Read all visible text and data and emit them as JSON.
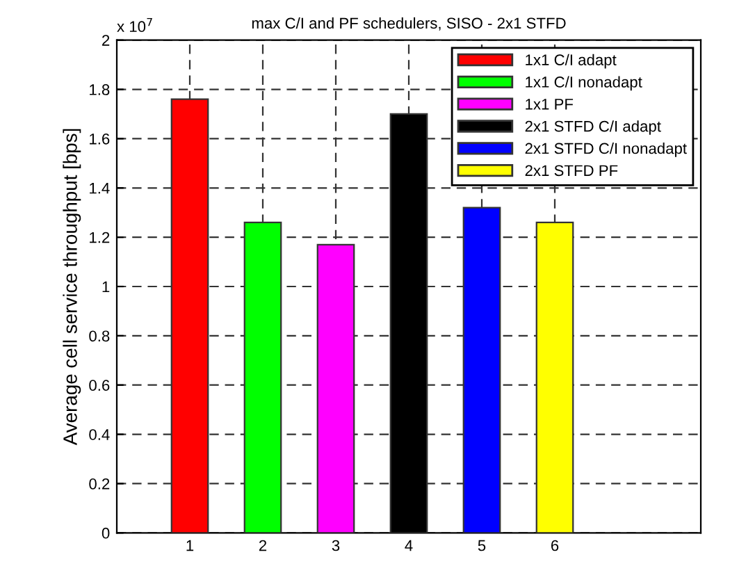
{
  "chart_data": {
    "type": "bar",
    "title": "max C/I and PF schedulers, SISO - 2x1 STFD",
    "ylabel": "Average cell service throughput [bps]",
    "annotations": [
      "x 10$^{7}$"
    ],
    "series": [
      {
        "name": "1x1 C/I adapt",
        "color": "#ff0000",
        "x": [
          1
        ],
        "values": [
          1.76
        ]
      },
      {
        "name": "1x1 C/I nonadapt",
        "color": "#00ff00",
        "x": [
          2
        ],
        "values": [
          1.26
        ]
      },
      {
        "name": "1x1 PF",
        "color": "#ff00ff",
        "x": [
          3
        ],
        "values": [
          1.17
        ]
      },
      {
        "name": "2x1 STFD C/I adapt",
        "color": "#000000",
        "x": [
          4
        ],
        "values": [
          1.7
        ]
      },
      {
        "name": "2x1 STFD C/I nonadapt",
        "color": "#0000ff",
        "x": [
          5
        ],
        "values": [
          1.32
        ]
      },
      {
        "name": "2x1 STFD PF",
        "color": "#ffff00",
        "x": [
          6
        ],
        "values": [
          1.26
        ]
      }
    ],
    "xlim": [
      0,
      8
    ],
    "xticks": [
      1,
      2,
      3,
      4,
      5,
      6
    ],
    "ylim": [
      0,
      2
    ],
    "yticks": [
      0,
      0.2,
      0.4,
      0.6,
      0.8,
      1,
      1.2,
      1.4,
      1.6,
      1.8,
      2
    ],
    "grid": true,
    "legend": "top right"
  }
}
